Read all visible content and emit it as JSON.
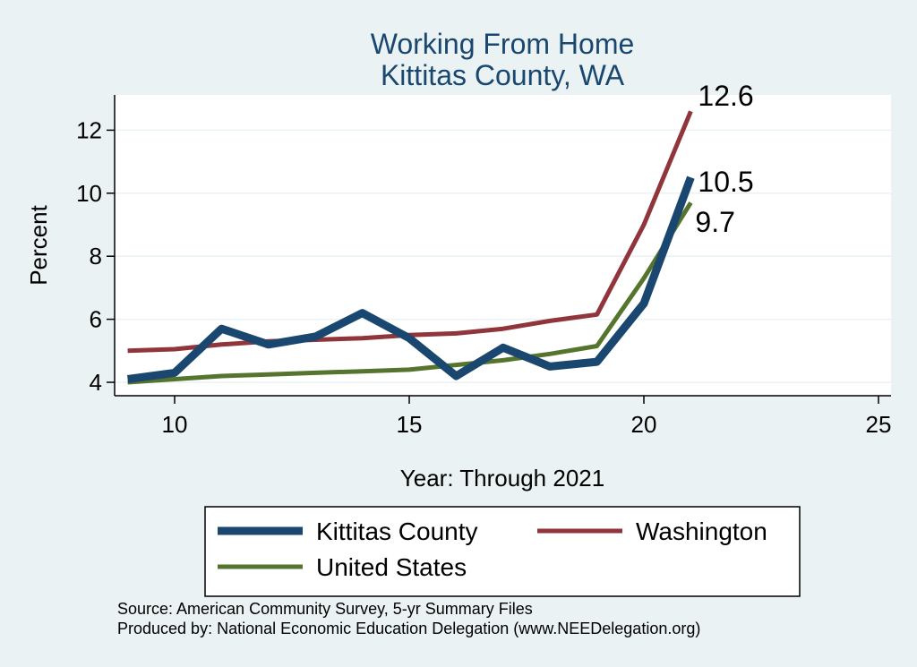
{
  "chart_data": {
    "type": "line",
    "title": [
      "Working From Home",
      "Kittitas County, WA"
    ],
    "xlabel": "Year: Through 2021",
    "ylabel": "Percent",
    "xlim": [
      9,
      25
    ],
    "ylim": [
      4,
      13
    ],
    "x_ticks": [
      10,
      15,
      20,
      25
    ],
    "y_ticks": [
      4,
      6,
      8,
      10,
      12
    ],
    "grid": true,
    "legend_placement": "bottom",
    "x": [
      9,
      10,
      11,
      12,
      13,
      14,
      15,
      16,
      17,
      18,
      19,
      20,
      21
    ],
    "series": [
      {
        "name": "Kittitas County",
        "color": "#1a476f",
        "values": [
          4.1,
          4.3,
          5.7,
          5.2,
          5.45,
          6.2,
          5.4,
          4.2,
          5.1,
          4.5,
          4.65,
          6.5,
          10.5
        ],
        "end_label": "10.5"
      },
      {
        "name": "Washington",
        "color": "#90353b",
        "values": [
          5.0,
          5.05,
          5.2,
          5.3,
          5.35,
          5.4,
          5.5,
          5.55,
          5.7,
          5.95,
          6.15,
          9.0,
          12.6
        ],
        "end_label": "12.6"
      },
      {
        "name": "United States",
        "color": "#55752f",
        "values": [
          4.0,
          4.1,
          4.2,
          4.25,
          4.3,
          4.35,
          4.4,
          4.55,
          4.7,
          4.9,
          5.15,
          7.3,
          9.7
        ],
        "end_label": "9.7"
      }
    ],
    "notes": [
      "Source: American Community Survey, 5-yr Summary Files",
      "Produced by: National Economic Education Delegation (www.NEEDelegation.org)"
    ]
  }
}
